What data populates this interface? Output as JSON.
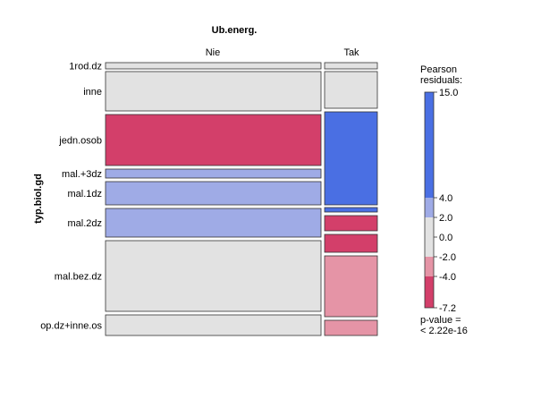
{
  "chart_data": {
    "type": "mosaic",
    "title": "Ub.energ.",
    "column_variable": "Ub.energ.",
    "row_variable": "typ.biol.gd",
    "columns": [
      "Nie",
      "Tak"
    ],
    "rows": [
      "1rod.dz",
      "inne",
      "jedn.osob",
      "mal.+3dz",
      "mal.1dz",
      "mal.2dz",
      "mal.bez.dz",
      "op.dz+inne.os"
    ],
    "cells": [
      {
        "row": "1rod.dz",
        "col": "Nie",
        "shade": "neutral"
      },
      {
        "row": "1rod.dz",
        "col": "Tak",
        "shade": "neutral"
      },
      {
        "row": "inne",
        "col": "Nie",
        "shade": "neutral"
      },
      {
        "row": "inne",
        "col": "Tak",
        "shade": "neutral"
      },
      {
        "row": "jedn.osob",
        "col": "Nie",
        "shade": "strong-negative"
      },
      {
        "row": "jedn.osob",
        "col": "Tak",
        "shade": "strong-positive"
      },
      {
        "row": "mal.+3dz",
        "col": "Nie",
        "shade": "positive"
      },
      {
        "row": "mal.+3dz",
        "col": "Tak",
        "shade": "strong-positive"
      },
      {
        "row": "mal.1dz",
        "col": "Nie",
        "shade": "positive"
      },
      {
        "row": "mal.1dz",
        "col": "Tak",
        "shade": "strong-negative"
      },
      {
        "row": "mal.2dz",
        "col": "Nie",
        "shade": "positive"
      },
      {
        "row": "mal.2dz",
        "col": "Tak",
        "shade": "strong-negative"
      },
      {
        "row": "mal.bez.dz",
        "col": "Nie",
        "shade": "neutral"
      },
      {
        "row": "mal.bez.dz",
        "col": "Tak",
        "shade": "negative"
      },
      {
        "row": "op.dz+inne.os",
        "col": "Nie",
        "shade": "neutral"
      },
      {
        "row": "op.dz+inne.os",
        "col": "Tak",
        "shade": "negative"
      }
    ],
    "legend": {
      "title_line1": "Pearson",
      "title_line2": "residuals:",
      "ticks": [
        "15.0",
        "4.0",
        "2.0",
        "0.0",
        "-2.0",
        "-4.0",
        "-7.2"
      ],
      "pvalue_line1": "p-value =",
      "pvalue_line2": "< 2.22e-16"
    },
    "colors": {
      "strong-positive": "#4a6fe3",
      "positive": "#9fabe6",
      "neutral": "#e2e2e2",
      "negative": "#e594a6",
      "strong-negative": "#d33f6a"
    }
  }
}
